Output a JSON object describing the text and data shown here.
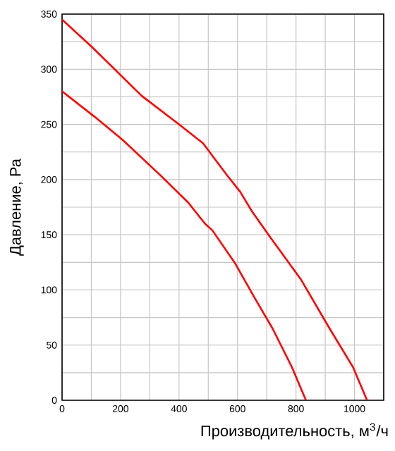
{
  "chart_data": {
    "type": "line",
    "xlabel": "Производительность, м$^{3}$/ч",
    "ylabel": "Давление, Ра",
    "xlim": [
      0,
      1100
    ],
    "ylim": [
      0,
      350
    ],
    "xticks": [
      0,
      {
        "value": 100,
        "label": null
      },
      200,
      {
        "value": 300,
        "label": null
      },
      400,
      {
        "value": 500,
        "label": null
      },
      600,
      {
        "value": 700,
        "label": null
      },
      800,
      {
        "value": 900,
        "label": null
      },
      1000,
      {
        "value": 1100,
        "label": null
      }
    ],
    "yticks": [
      0,
      {
        "value": 25,
        "label": null
      },
      50,
      {
        "value": 75,
        "label": null
      },
      100,
      {
        "value": 125,
        "label": null
      },
      150,
      {
        "value": 175,
        "label": null
      },
      200,
      {
        "value": 225,
        "label": null
      },
      250,
      {
        "value": 275,
        "label": null
      },
      300,
      {
        "value": 325,
        "label": null
      },
      350
    ],
    "grid": true,
    "marker": "none",
    "line_style": "solid",
    "series": [
      {
        "color": "#ff0000",
        "x": [
          0,
          103,
          272,
          400,
          482,
          561,
          609,
          650,
          706,
          818,
          915,
          995,
          1043
        ],
        "values": [
          345,
          320,
          276,
          250,
          233,
          205,
          189,
          171,
          150,
          109,
          65,
          30,
          0
        ]
      },
      {
        "color": "#ff0000",
        "x": [
          0,
          111,
          207,
          336,
          432,
          489,
          514,
          592,
          656,
          720,
          786,
          834
        ],
        "values": [
          280,
          257,
          236,
          204,
          179,
          160,
          154,
          124,
          94,
          65,
          30,
          0
        ]
      }
    ]
  }
}
